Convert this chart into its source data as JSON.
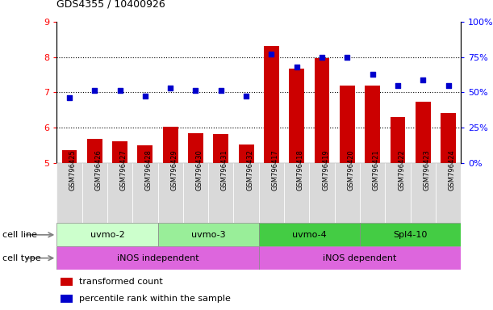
{
  "title": "GDS4355 / 10400926",
  "samples": [
    "GSM796425",
    "GSM796426",
    "GSM796427",
    "GSM796428",
    "GSM796429",
    "GSM796430",
    "GSM796431",
    "GSM796432",
    "GSM796417",
    "GSM796418",
    "GSM796419",
    "GSM796420",
    "GSM796421",
    "GSM796422",
    "GSM796423",
    "GSM796424"
  ],
  "bar_values": [
    5.35,
    5.68,
    5.6,
    5.5,
    6.02,
    5.84,
    5.82,
    5.52,
    8.3,
    7.68,
    7.96,
    7.18,
    7.18,
    6.3,
    6.72,
    6.4
  ],
  "dot_percentiles": [
    46,
    51,
    51,
    47,
    53,
    51,
    51,
    47,
    77,
    68,
    75,
    75,
    63,
    55,
    59,
    55
  ],
  "ylim": [
    5,
    9
  ],
  "y2lim": [
    0,
    100
  ],
  "yticks": [
    5,
    6,
    7,
    8,
    9
  ],
  "y2ticks": [
    0,
    25,
    50,
    75,
    100
  ],
  "y2ticklabels": [
    "0%",
    "25%",
    "50%",
    "75%",
    "100%"
  ],
  "bar_color": "#cc0000",
  "dot_color": "#0000cc",
  "cell_lines": [
    {
      "label": "uvmo-2",
      "start": 0,
      "end": 3,
      "color": "#ccffcc"
    },
    {
      "label": "uvmo-3",
      "start": 4,
      "end": 7,
      "color": "#99ee99"
    },
    {
      "label": "uvmo-4",
      "start": 8,
      "end": 11,
      "color": "#44cc44"
    },
    {
      "label": "Spl4-10",
      "start": 12,
      "end": 15,
      "color": "#44cc44"
    }
  ],
  "cell_types": [
    {
      "label": "iNOS independent",
      "start": 0,
      "end": 7,
      "color": "#dd66dd"
    },
    {
      "label": "iNOS dependent",
      "start": 8,
      "end": 15,
      "color": "#dd66dd"
    }
  ],
  "legend_items": [
    {
      "label": "transformed count",
      "color": "#cc0000"
    },
    {
      "label": "percentile rank within the sample",
      "color": "#0000cc"
    }
  ]
}
